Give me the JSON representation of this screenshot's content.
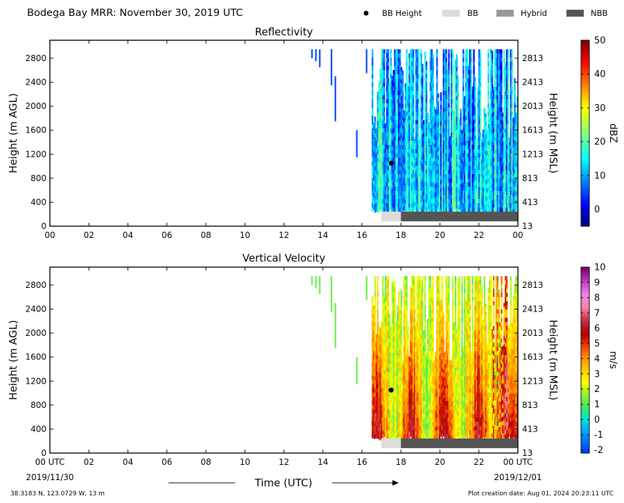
{
  "figure": {
    "title": "Bodega Bay MRR:  November 30, 2019 UTC",
    "legend": [
      {
        "label": "BB Height",
        "symbol": "dot",
        "color": "#000000"
      },
      {
        "label": "BB",
        "symbol": "box",
        "color": "#dcdcdc"
      },
      {
        "label": "Hybrid",
        "symbol": "box",
        "color": "#999999"
      },
      {
        "label": "NBB",
        "symbol": "box",
        "color": "#555555"
      }
    ],
    "xlabel": "Time (UTC)",
    "start_date": "2019/11/30",
    "end_date": "2019/12/01",
    "location": "38.3183 N, 123.0729 W, 13 m",
    "creation": "Plot creation date: Aug 01, 2024 20:23:11 UTC"
  },
  "chart_data": [
    {
      "type": "heatmap",
      "title": "Reflectivity",
      "ylabel": "Height (m AGL)",
      "ylabel_right": "Height (m MSL)",
      "colorbar_label": "dBZ",
      "colorbar_range": [
        -5,
        50
      ],
      "colorbar_ticks": [
        "0",
        "10",
        "20",
        "30",
        "40",
        "50"
      ],
      "colorbar_tick_values": [
        0,
        10,
        20,
        30,
        40,
        50
      ],
      "xlim": [
        0,
        24
      ],
      "ylim": [
        0,
        3100
      ],
      "x_ticks": [
        "00",
        "02",
        "04",
        "06",
        "08",
        "10",
        "12",
        "14",
        "16",
        "18",
        "20",
        "22",
        "00"
      ],
      "y_ticks": [
        "0",
        "400",
        "800",
        "1200",
        "1600",
        "2000",
        "2400",
        "2800"
      ],
      "y_ticks_right": [
        "13",
        "413",
        "813",
        "1213",
        "1613",
        "2013",
        "2413",
        "2813"
      ],
      "bb_height": {
        "x": 17.5,
        "y": 1050
      },
      "bb_bar": [
        {
          "start": 17.0,
          "end": 18.0,
          "class": "BB"
        },
        {
          "start": 18.0,
          "end": 24.0,
          "class": "NBB"
        }
      ]
    },
    {
      "type": "heatmap",
      "title": "Vertical Velocity",
      "ylabel": "Height (m AGL)",
      "ylabel_right": "Height (m MSL)",
      "colorbar_label": "m/s",
      "colorbar_range": [
        -2.2,
        10
      ],
      "colorbar_ticks": [
        "-2",
        "-1",
        "0",
        "1",
        "2",
        "3",
        "4",
        "5",
        "6",
        "7",
        "8",
        "9",
        "10"
      ],
      "colorbar_tick_values": [
        -2,
        -1,
        0,
        1,
        2,
        3,
        4,
        5,
        6,
        7,
        8,
        9,
        10
      ],
      "xlim": [
        0,
        24
      ],
      "ylim": [
        0,
        3100
      ],
      "x_ticks": [
        "00 UTC",
        "02",
        "04",
        "06",
        "08",
        "10",
        "12",
        "14",
        "16",
        "18",
        "20",
        "22",
        "00 UTC"
      ],
      "y_ticks": [
        "0",
        "400",
        "800",
        "1200",
        "1600",
        "2000",
        "2400",
        "2800"
      ],
      "y_ticks_right": [
        "13",
        "413",
        "813",
        "1213",
        "1613",
        "2013",
        "2413",
        "2813"
      ],
      "bb_height": {
        "x": 17.5,
        "y": 1050
      },
      "bb_bar": [
        {
          "start": 17.0,
          "end": 18.0,
          "class": "BB"
        },
        {
          "start": 18.0,
          "end": 24.0,
          "class": "NBB"
        }
      ]
    }
  ]
}
